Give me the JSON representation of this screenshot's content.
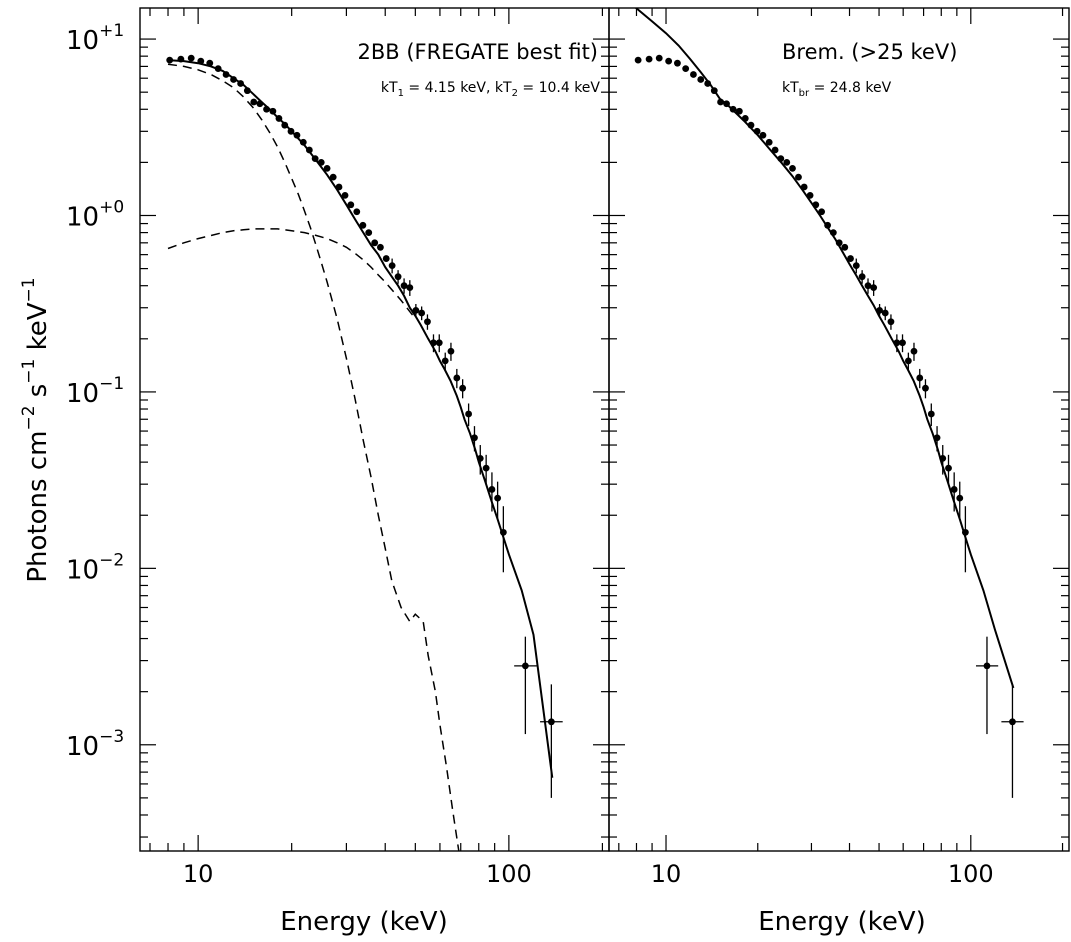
{
  "chart_data": [
    {
      "type": "scatter",
      "panel": "left",
      "title": "2BB (FREGATE best fit)",
      "subtitle": {
        "k": "kT",
        "s1": "1",
        "v1": " = 4.15 keV, kT",
        "s2": "2",
        "v2": " = 10.4 keV"
      },
      "xlabel": "Energy (keV)",
      "ylabel": {
        "a": "Photons cm",
        "b": "−2",
        "c": " s",
        "d": "−1",
        "e": " keV",
        "f": "−1"
      },
      "xscale": "log",
      "yscale": "log",
      "xlim": [
        6.5,
        210
      ],
      "ylim": [
        0.00025,
        15
      ],
      "x_tick_labels": [
        {
          "x": 10,
          "label": "10"
        },
        {
          "x": 100,
          "label": "100"
        }
      ],
      "y_tick_labels": [
        {
          "y": 10,
          "base": "10",
          "exp": "+1"
        },
        {
          "y": 1,
          "base": "10",
          "exp": "+0"
        },
        {
          "y": 0.1,
          "base": "10",
          "exp": "−1"
        },
        {
          "y": 0.01,
          "base": "10",
          "exp": "−2"
        },
        {
          "y": 0.001,
          "base": "10",
          "exp": "−3"
        }
      ],
      "points": {
        "x": [
          8.1,
          8.8,
          9.5,
          10.2,
          10.9,
          11.6,
          12.3,
          13.0,
          13.7,
          14.4,
          15.1,
          15.8,
          16.6,
          17.4,
          18.2,
          19.0,
          19.9,
          20.8,
          21.8,
          22.8,
          23.8,
          24.9,
          26.0,
          27.2,
          28.4,
          29.7,
          31.0,
          32.4,
          33.9,
          35.4,
          37.0,
          38.6,
          40.3,
          42.1,
          44.0,
          46.0,
          48.0,
          50.2,
          52.4,
          54.7,
          57.2,
          59.7,
          62.4,
          65.1,
          68.0,
          71.0,
          74.2,
          77.5,
          80.9,
          84.5,
          88.2,
          92.0,
          96.0,
          113.0,
          137.0
        ],
        "y": [
          7.6,
          7.7,
          7.8,
          7.5,
          7.3,
          6.8,
          6.3,
          5.9,
          5.6,
          5.1,
          4.4,
          4.3,
          4.0,
          3.9,
          3.55,
          3.25,
          3.0,
          2.85,
          2.6,
          2.35,
          2.1,
          2.0,
          1.85,
          1.65,
          1.45,
          1.3,
          1.15,
          1.05,
          0.88,
          0.8,
          0.7,
          0.66,
          0.57,
          0.52,
          0.45,
          0.4,
          0.39,
          0.29,
          0.28,
          0.25,
          0.19,
          0.19,
          0.15,
          0.17,
          0.12,
          0.105,
          0.075,
          0.055,
          0.042,
          0.037,
          0.028,
          0.025,
          0.016,
          0.0028,
          0.00135
        ],
        "yerr_low": [
          null,
          null,
          null,
          null,
          null,
          null,
          null,
          null,
          null,
          null,
          null,
          null,
          null,
          null,
          null,
          null,
          null,
          null,
          null,
          null,
          null,
          null,
          null,
          null,
          null,
          null,
          null,
          null,
          null,
          null,
          null,
          null,
          null,
          0.47,
          0.41,
          0.36,
          0.35,
          0.265,
          0.255,
          0.225,
          0.168,
          0.168,
          0.133,
          0.15,
          0.105,
          0.092,
          0.064,
          0.046,
          0.034,
          0.03,
          0.021,
          0.019,
          0.0095,
          0.00115,
          0.0005
        ],
        "yerr_high": [
          null,
          null,
          null,
          null,
          null,
          null,
          null,
          null,
          null,
          null,
          null,
          null,
          null,
          null,
          null,
          null,
          null,
          null,
          null,
          null,
          null,
          null,
          null,
          null,
          null,
          null,
          null,
          null,
          null,
          null,
          null,
          null,
          null,
          0.57,
          0.49,
          0.44,
          0.43,
          0.315,
          0.305,
          0.275,
          0.212,
          0.212,
          0.167,
          0.19,
          0.135,
          0.118,
          0.086,
          0.064,
          0.05,
          0.044,
          0.035,
          0.031,
          0.0225,
          0.0041,
          0.0022
        ],
        "xerr_low": [
          null,
          null,
          null,
          null,
          null,
          null,
          null,
          null,
          null,
          null,
          null,
          null,
          null,
          null,
          null,
          null,
          null,
          null,
          null,
          null,
          null,
          null,
          null,
          null,
          null,
          null,
          null,
          null,
          null,
          null,
          null,
          null,
          null,
          null,
          null,
          null,
          null,
          null,
          null,
          null,
          null,
          null,
          null,
          null,
          null,
          null,
          null,
          null,
          null,
          null,
          null,
          null,
          null,
          104,
          126
        ],
        "xerr_high": [
          null,
          null,
          null,
          null,
          null,
          null,
          null,
          null,
          null,
          null,
          null,
          null,
          null,
          null,
          null,
          null,
          null,
          null,
          null,
          null,
          null,
          null,
          null,
          null,
          null,
          null,
          null,
          null,
          null,
          null,
          null,
          null,
          null,
          null,
          null,
          null,
          null,
          null,
          null,
          null,
          null,
          null,
          null,
          null,
          null,
          null,
          null,
          null,
          null,
          null,
          null,
          null,
          null,
          123,
          149
        ]
      },
      "series": [
        {
          "style": "solid",
          "x": [
            8,
            9,
            10,
            11,
            12,
            13,
            14,
            15,
            16,
            17,
            18,
            19,
            20,
            22,
            24,
            26,
            28,
            30,
            32,
            34,
            36,
            38,
            40,
            42,
            44,
            46,
            48,
            50,
            52,
            55,
            58,
            60,
            62,
            65,
            68,
            70,
            72,
            75,
            78,
            80,
            84,
            88,
            92,
            96,
            100,
            110,
            120,
            138
          ],
          "y": [
            7.6,
            7.5,
            7.3,
            7.0,
            6.6,
            6.0,
            5.5,
            4.9,
            4.4,
            4.0,
            3.6,
            3.3,
            3.0,
            2.5,
            2.05,
            1.7,
            1.4,
            1.15,
            0.95,
            0.8,
            0.68,
            0.6,
            0.51,
            0.45,
            0.4,
            0.35,
            0.3,
            0.27,
            0.24,
            0.2,
            0.17,
            0.15,
            0.135,
            0.115,
            0.095,
            0.082,
            0.07,
            0.058,
            0.047,
            0.04,
            0.031,
            0.024,
            0.019,
            0.015,
            0.012,
            0.0075,
            0.0042,
            0.00065
          ]
        },
        {
          "style": "dashed",
          "x": [
            8,
            9,
            10,
            11,
            12,
            13,
            14,
            15,
            16,
            17,
            18,
            19,
            20,
            21,
            22,
            23,
            24,
            25,
            26,
            28,
            30,
            32,
            34,
            36,
            38,
            40,
            42,
            45,
            48,
            50,
            53,
            55,
            58,
            60,
            63,
            66,
            69
          ],
          "y": [
            7.2,
            7.0,
            6.7,
            6.3,
            5.8,
            5.3,
            4.7,
            4.1,
            3.5,
            2.95,
            2.45,
            2.0,
            1.62,
            1.32,
            1.06,
            0.85,
            0.67,
            0.53,
            0.42,
            0.26,
            0.155,
            0.091,
            0.053,
            0.033,
            0.02,
            0.013,
            0.0085,
            0.006,
            0.005,
            0.0055,
            0.005,
            0.0032,
            0.002,
            0.0013,
            0.00075,
            0.00042,
            0.00025
          ]
        },
        {
          "style": "dashed",
          "x": [
            8,
            9,
            10,
            11,
            12,
            13,
            14,
            15,
            16,
            17,
            18,
            19,
            20,
            22,
            24,
            26,
            28,
            30,
            32,
            34,
            36,
            38,
            40,
            45,
            50
          ],
          "y": [
            0.65,
            0.7,
            0.74,
            0.77,
            0.8,
            0.82,
            0.83,
            0.84,
            0.84,
            0.84,
            0.84,
            0.83,
            0.82,
            0.8,
            0.77,
            0.74,
            0.7,
            0.66,
            0.61,
            0.56,
            0.51,
            0.46,
            0.42,
            0.33,
            0.26
          ]
        }
      ]
    },
    {
      "type": "scatter",
      "panel": "right",
      "title": "Brem. (>25 keV)",
      "subtitle": {
        "k": "kT",
        "s1": "br",
        "v1": " = 24.8 keV"
      },
      "xlabel": "Energy (keV)",
      "xscale": "log",
      "yscale": "log",
      "xlim": [
        6.5,
        210
      ],
      "ylim": [
        0.00025,
        15
      ],
      "x_tick_labels": [
        {
          "x": 10,
          "label": "10"
        },
        {
          "x": 100,
          "label": "100"
        }
      ],
      "points": "same as left panel",
      "series": [
        {
          "style": "solid",
          "x": [
            7.8,
            9,
            10,
            11,
            12,
            13,
            14,
            15,
            16,
            18,
            20,
            22,
            24,
            26,
            28,
            30,
            32,
            34,
            36,
            38,
            40,
            42,
            44,
            46,
            48,
            50,
            52,
            55,
            58,
            60,
            62,
            65,
            68,
            70,
            72,
            75,
            78,
            80,
            84,
            88,
            92,
            96,
            100,
            110,
            120,
            138
          ],
          "y": [
            15.5,
            12.6,
            10.8,
            9.2,
            7.7,
            6.5,
            5.5,
            4.6,
            4.2,
            3.45,
            2.85,
            2.35,
            1.98,
            1.67,
            1.4,
            1.18,
            1.0,
            0.85,
            0.73,
            0.62,
            0.53,
            0.46,
            0.4,
            0.35,
            0.31,
            0.27,
            0.24,
            0.2,
            0.17,
            0.15,
            0.135,
            0.115,
            0.095,
            0.082,
            0.07,
            0.058,
            0.047,
            0.04,
            0.031,
            0.024,
            0.019,
            0.015,
            0.012,
            0.0075,
            0.0045,
            0.0021
          ]
        }
      ]
    }
  ]
}
